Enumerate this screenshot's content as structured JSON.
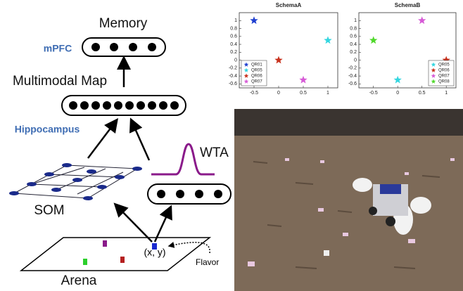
{
  "diagram": {
    "memory": "Memory",
    "mpfc": "mPFC",
    "multimodal_map": "Multimodal Map",
    "hippocampus": "Hippocampus",
    "wta": "WTA",
    "som": "SOM",
    "position": "(x, y)",
    "flavor": "Flavor",
    "arena": "Arena"
  },
  "chart_data": [
    {
      "type": "scatter",
      "title": "SchemaA",
      "xlim": [
        -0.8,
        1.2
      ],
      "ylim": [
        -0.7,
        1.2
      ],
      "xticks": [
        -0.5,
        0,
        0.5,
        1
      ],
      "yticks": [
        -0.6,
        -0.4,
        -0.2,
        0,
        0.2,
        0.4,
        0.6,
        0.8,
        1
      ],
      "legend": "lower left",
      "series": [
        {
          "name": "QR01",
          "color": "#1f3fd0",
          "x": [
            -0.5
          ],
          "values": [
            1
          ]
        },
        {
          "name": "QR05",
          "color": "#33d6e0",
          "x": [
            1
          ],
          "values": [
            0.5
          ]
        },
        {
          "name": "QR06",
          "color": "#c8321e",
          "x": [
            0
          ],
          "values": [
            0
          ]
        },
        {
          "name": "QR07",
          "color": "#d65ad6",
          "x": [
            0.5
          ],
          "values": [
            -0.5
          ]
        }
      ]
    },
    {
      "type": "scatter",
      "title": "SchemaB",
      "xlim": [
        -0.8,
        1.2
      ],
      "ylim": [
        -0.7,
        1.2
      ],
      "xticks": [
        -0.5,
        0,
        0.5,
        1
      ],
      "yticks": [
        -0.6,
        -0.4,
        -0.2,
        0,
        0.2,
        0.4,
        0.6,
        0.8,
        1
      ],
      "legend": "lower right",
      "series": [
        {
          "name": "QR05",
          "color": "#33d6e0",
          "x": [
            0
          ],
          "values": [
            -0.5
          ]
        },
        {
          "name": "QR06",
          "color": "#c8321e",
          "x": [
            1
          ],
          "values": [
            0
          ]
        },
        {
          "name": "QR07",
          "color": "#d65ad6",
          "x": [
            0.5
          ],
          "values": [
            1
          ]
        },
        {
          "name": "QR08",
          "color": "#4fd82a",
          "x": [
            -0.5
          ],
          "values": [
            0.5
          ]
        }
      ]
    }
  ]
}
